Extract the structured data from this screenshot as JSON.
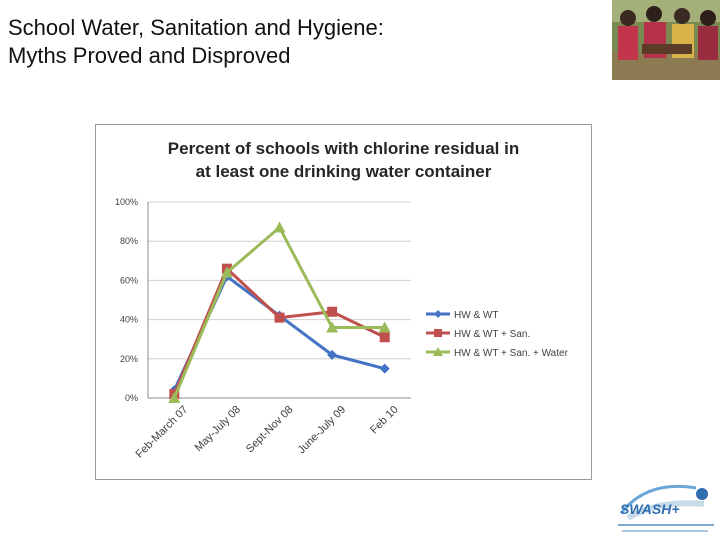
{
  "slide": {
    "title_line1": "School Water, Sanitation and Hygiene:",
    "title_line2": "Myths Proved and Disproved"
  },
  "logo": {
    "text": "SWASH+"
  },
  "chart_data": {
    "type": "line",
    "title_line1": "Percent of schools with chlorine residual in",
    "title_line2": "at least one drinking water container",
    "categories": [
      "Feb-March 07",
      "May-July 08",
      "Sept-Nov 08",
      "June-July 09",
      "Feb 10"
    ],
    "ylim": [
      0,
      100
    ],
    "y_ticks": [
      "0%",
      "20%",
      "40%",
      "60%",
      "80%",
      "100%"
    ],
    "grid": true,
    "legend_position": "right",
    "series": [
      {
        "name": "HW & WT",
        "color": "#4472C4",
        "marker": "diamond",
        "values": [
          4,
          62,
          42,
          22,
          15
        ]
      },
      {
        "name": "HW & WT + San.",
        "color": "#C0504D",
        "marker": "square",
        "values": [
          2,
          66,
          41,
          44,
          31
        ]
      },
      {
        "name": "HW & WT + San. + Water",
        "color": "#9BBB59",
        "marker": "triangle",
        "values": [
          0,
          64,
          87,
          36,
          36
        ]
      }
    ]
  }
}
